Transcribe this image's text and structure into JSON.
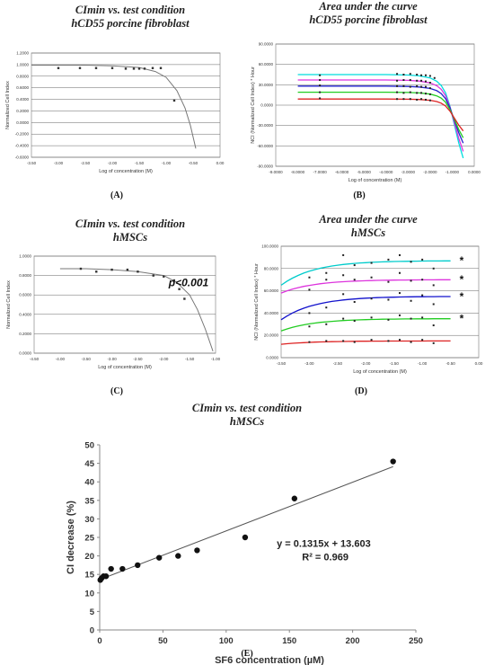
{
  "chart_data": [
    {
      "panel": "(A)",
      "type": "scatter",
      "title": "CImin vs. test condition",
      "subtitle": "hCD55 porcine fibroblast",
      "xlabel": "Log of concentration (M)",
      "ylabel": "Normalized Cell Index",
      "xlim": [
        -3.5,
        0.0
      ],
      "ylim": [
        -0.6,
        1.2
      ],
      "xticks": [
        "-3.50",
        "-3.00",
        "-2.50",
        "-2.00",
        "-1.50",
        "-1.00",
        "-0.50",
        "0.00"
      ],
      "yticks": [
        "-0.6000",
        "-0.4000",
        "-0.2000",
        "0.0000",
        "0.2000",
        "0.4000",
        "0.6000",
        "0.8000",
        "1.0000",
        "1.2000"
      ],
      "grid": true,
      "series": [
        {
          "points": [
            [
              -3.0,
              0.94
            ],
            [
              -2.6,
              0.94
            ],
            [
              -2.3,
              0.94
            ],
            [
              -2.0,
              0.94
            ],
            [
              -1.75,
              0.93
            ],
            [
              -1.6,
              0.93
            ],
            [
              -1.5,
              0.93
            ],
            [
              -1.4,
              0.93
            ],
            [
              -1.25,
              0.94
            ],
            [
              -1.1,
              0.94
            ],
            [
              -0.85,
              0.38
            ]
          ],
          "fit": [
            [
              -3.5,
              0.99
            ],
            [
              -2.5,
              0.99
            ],
            [
              -2.0,
              0.98
            ],
            [
              -1.5,
              0.95
            ],
            [
              -1.2,
              0.88
            ],
            [
              -1.0,
              0.78
            ],
            [
              -0.8,
              0.55
            ],
            [
              -0.65,
              0.25
            ],
            [
              -0.55,
              -0.05
            ],
            [
              -0.45,
              -0.45
            ]
          ]
        }
      ]
    },
    {
      "panel": "(B)",
      "type": "line",
      "title": "Area under the curve",
      "subtitle": "hCD55 porcine fibroblast",
      "xlabel": "Log of concentration (M)",
      "ylabel": "NCI (Normalized Cell Index) * Hour",
      "xlim": [
        -9.0,
        0.0
      ],
      "ylim": [
        -90,
        90
      ],
      "xticks": [
        "-9.0000",
        "-8.0000",
        "-7.0000",
        "-6.0000",
        "-5.0000",
        "-4.0000",
        "-3.0000",
        "-2.0000",
        "-1.0000",
        "0.0000"
      ],
      "yticks": [
        "-90.0000",
        "-60.0000",
        "-30.0000",
        "0.0000",
        "30.0000",
        "60.0000",
        "90.0000"
      ],
      "grid": true,
      "series": [
        {
          "color": "#00dddd",
          "plateau": 45,
          "end": -78,
          "points": [
            [
              -7.0,
              44
            ],
            [
              -3.5,
              46
            ],
            [
              -3.2,
              45
            ],
            [
              -2.9,
              46
            ],
            [
              -2.6,
              45
            ],
            [
              -2.4,
              44
            ],
            [
              -2.2,
              44
            ],
            [
              -2.0,
              43
            ],
            [
              -1.8,
              40
            ]
          ]
        },
        {
          "color": "#dd33dd",
          "plateau": 37,
          "end": -68,
          "points": [
            [
              -7.0,
              37
            ],
            [
              -3.5,
              36
            ],
            [
              -3.2,
              37
            ],
            [
              -2.9,
              37
            ],
            [
              -2.6,
              36
            ],
            [
              -2.4,
              36
            ],
            [
              -2.2,
              35
            ],
            [
              -2.0,
              33
            ]
          ]
        },
        {
          "color": "#2222cc",
          "plateau": 28,
          "end": -56,
          "points": [
            [
              -7.0,
              29
            ],
            [
              -3.5,
              28
            ],
            [
              -3.2,
              28
            ],
            [
              -2.9,
              27
            ],
            [
              -2.6,
              28
            ],
            [
              -2.4,
              27
            ],
            [
              -2.2,
              27
            ],
            [
              -2.0,
              25
            ]
          ]
        },
        {
          "color": "#22cc22",
          "plateau": 19,
          "end": -48,
          "points": [
            [
              -7.0,
              19
            ],
            [
              -3.5,
              19
            ],
            [
              -3.2,
              18
            ],
            [
              -2.9,
              19
            ],
            [
              -2.6,
              18
            ],
            [
              -2.4,
              18
            ],
            [
              -2.2,
              17
            ],
            [
              -2.0,
              16
            ]
          ]
        },
        {
          "color": "#dd2222",
          "plateau": 9,
          "end": -38,
          "points": [
            [
              -7.0,
              10
            ],
            [
              -3.5,
              9
            ],
            [
              -3.2,
              9
            ],
            [
              -2.9,
              9
            ],
            [
              -2.6,
              8
            ],
            [
              -2.4,
              9
            ],
            [
              -2.2,
              8
            ],
            [
              -2.0,
              7
            ]
          ]
        }
      ]
    },
    {
      "panel": "(C)",
      "type": "scatter",
      "title": "CImin vs. test condition",
      "subtitle": "hMSCs",
      "xlabel": "Log of concentration (M)",
      "ylabel": "Normalized Cell Index",
      "annotation": "p<0.001",
      "xlim": [
        -4.5,
        -1.0
      ],
      "ylim": [
        0.0,
        1.0
      ],
      "xticks": [
        "-4.50",
        "-4.00",
        "-3.50",
        "-3.00",
        "-2.50",
        "-2.00",
        "-1.50",
        "-1.00"
      ],
      "yticks": [
        "0.0000",
        "0.2000",
        "0.4000",
        "0.6000",
        "0.8000",
        "1.0000"
      ],
      "grid": true,
      "series": [
        {
          "points": [
            [
              -3.6,
              0.87
            ],
            [
              -3.3,
              0.84
            ],
            [
              -3.0,
              0.86
            ],
            [
              -2.7,
              0.86
            ],
            [
              -2.5,
              0.84
            ],
            [
              -2.2,
              0.8
            ],
            [
              -2.0,
              0.79
            ],
            [
              -1.8,
              0.75
            ],
            [
              -1.7,
              0.66
            ],
            [
              -1.6,
              0.56
            ]
          ],
          "fit": [
            [
              -4.0,
              0.87
            ],
            [
              -3.5,
              0.87
            ],
            [
              -3.0,
              0.86
            ],
            [
              -2.5,
              0.84
            ],
            [
              -2.0,
              0.8
            ],
            [
              -1.75,
              0.73
            ],
            [
              -1.5,
              0.6
            ],
            [
              -1.35,
              0.45
            ],
            [
              -1.2,
              0.25
            ],
            [
              -1.05,
              0.02
            ]
          ]
        }
      ]
    },
    {
      "panel": "(D)",
      "type": "line",
      "title": "Area under the curve",
      "subtitle": "hMSCs",
      "xlabel": "Log of concentration (M)",
      "ylabel": "NCI (Normalized Cell Index) * Hour",
      "significance": [
        "*",
        "*",
        "*",
        "*"
      ],
      "xlim": [
        -3.5,
        0.0
      ],
      "ylim": [
        0,
        100
      ],
      "xticks": [
        "-3.50",
        "-3.00",
        "-2.50",
        "-2.00",
        "-1.50",
        "-1.00",
        "-0.50",
        "0.00"
      ],
      "yticks": [
        "0.0000",
        "20.0000",
        "40.0000",
        "60.0000",
        "80.0000",
        "100.0000"
      ],
      "grid": true,
      "series": [
        {
          "color": "#00cccc",
          "start": 65,
          "plateau": 87,
          "points": [
            [
              -3.0,
              72
            ],
            [
              -2.7,
              76
            ],
            [
              -2.4,
              92
            ],
            [
              -2.2,
              83
            ],
            [
              -1.9,
              85
            ],
            [
              -1.6,
              88
            ],
            [
              -1.4,
              92
            ],
            [
              -1.2,
              86
            ],
            [
              -1.0,
              88
            ],
            [
              -0.8,
              80
            ]
          ]
        },
        {
          "color": "#dd33dd",
          "start": 58,
          "plateau": 70,
          "points": [
            [
              -3.0,
              61
            ],
            [
              -2.7,
              70
            ],
            [
              -2.4,
              74
            ],
            [
              -2.2,
              70
            ],
            [
              -1.9,
              72
            ],
            [
              -1.6,
              68
            ],
            [
              -1.4,
              76
            ],
            [
              -1.2,
              69
            ],
            [
              -1.0,
              70
            ],
            [
              -0.8,
              65
            ]
          ]
        },
        {
          "color": "#1111cc",
          "start": 34,
          "plateau": 55,
          "points": [
            [
              -3.0,
              40
            ],
            [
              -2.7,
              45
            ],
            [
              -2.4,
              57
            ],
            [
              -2.2,
              50
            ],
            [
              -1.9,
              53
            ],
            [
              -1.6,
              52
            ],
            [
              -1.4,
              58
            ],
            [
              -1.2,
              51
            ],
            [
              -1.0,
              56
            ],
            [
              -0.8,
              48
            ]
          ]
        },
        {
          "color": "#22cc22",
          "start": 24,
          "plateau": 35,
          "points": [
            [
              -3.0,
              28
            ],
            [
              -2.7,
              30
            ],
            [
              -2.4,
              35
            ],
            [
              -2.2,
              33
            ],
            [
              -1.9,
              36
            ],
            [
              -1.6,
              34
            ],
            [
              -1.4,
              38
            ],
            [
              -1.2,
              35
            ],
            [
              -1.0,
              36
            ],
            [
              -0.8,
              29
            ]
          ]
        },
        {
          "color": "#dd2222",
          "start": 12,
          "plateau": 15,
          "points": [
            [
              -3.0,
              14
            ],
            [
              -2.7,
              15
            ],
            [
              -2.4,
              15
            ],
            [
              -2.2,
              14
            ],
            [
              -1.9,
              16
            ],
            [
              -1.6,
              15
            ],
            [
              -1.4,
              16
            ],
            [
              -1.2,
              14
            ],
            [
              -1.0,
              16
            ],
            [
              -0.8,
              13
            ]
          ]
        }
      ]
    },
    {
      "panel": "(E)",
      "type": "scatter",
      "title": "CImin vs. test condition",
      "subtitle": "hMSCs",
      "xlabel": "SF6 concentration (µM)",
      "ylabel": "CI decrease (%)",
      "equation": "y = 0.1315x + 13.603",
      "r2": "R² = 0.969",
      "xlim": [
        0,
        250
      ],
      "ylim": [
        0,
        50
      ],
      "xticks": [
        "0",
        "50",
        "100",
        "150",
        "200",
        "250"
      ],
      "yticks": [
        "0",
        "5",
        "10",
        "15",
        "20",
        "25",
        "30",
        "35",
        "40",
        "45",
        "50"
      ],
      "grid": false,
      "points": [
        [
          0.5,
          13.5
        ],
        [
          1.5,
          14
        ],
        [
          3,
          14.5
        ],
        [
          5,
          14.5
        ],
        [
          9,
          16.5
        ],
        [
          18,
          16.5
        ],
        [
          30,
          17.5
        ],
        [
          47,
          19.5
        ],
        [
          62,
          20
        ],
        [
          77,
          21.5
        ],
        [
          115,
          25
        ],
        [
          154,
          35.5
        ],
        [
          232,
          45.5
        ]
      ],
      "trendline": {
        "slope": 0.1315,
        "intercept": 13.603,
        "x": [
          0,
          232
        ]
      }
    }
  ],
  "captions": [
    "(A)",
    "(B)",
    "(C)",
    "(D)",
    "(E)"
  ]
}
